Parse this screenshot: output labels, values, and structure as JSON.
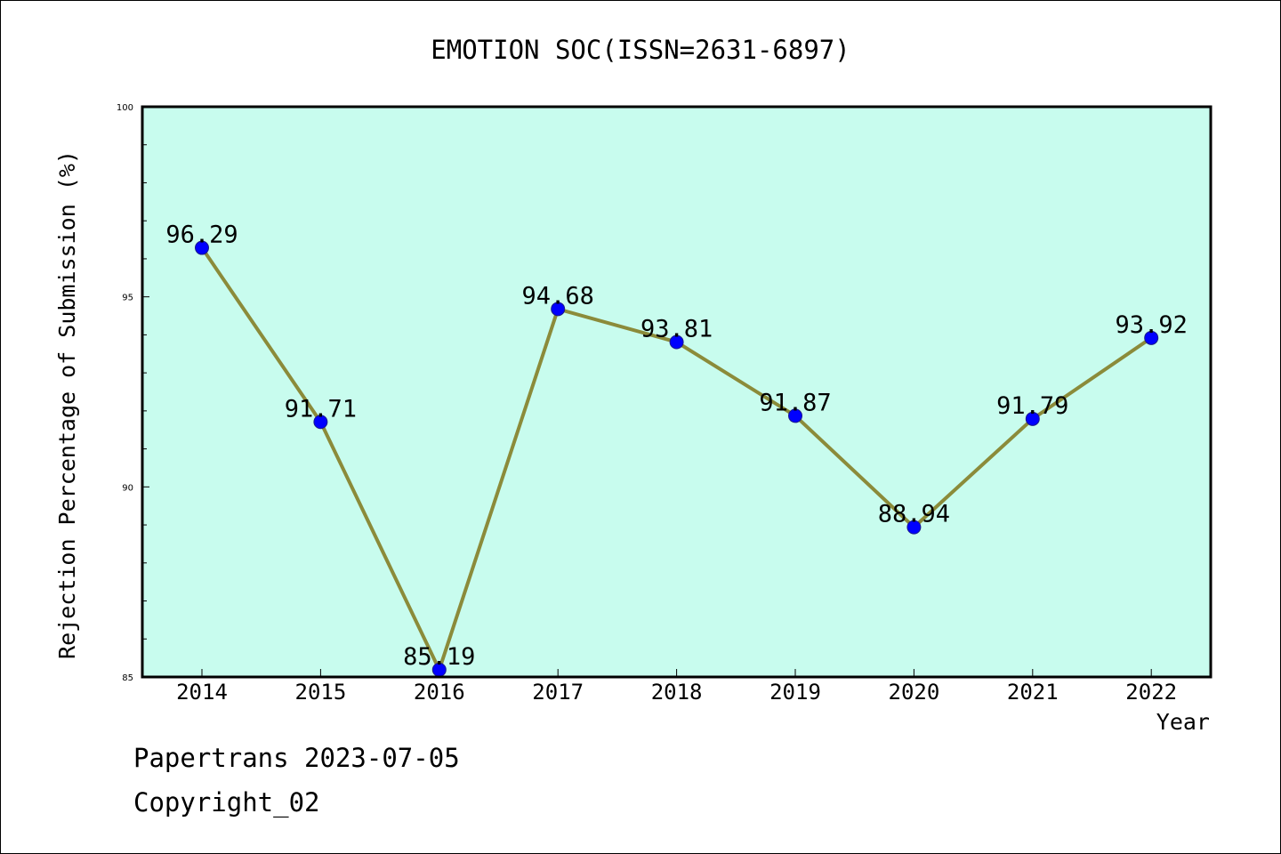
{
  "chart_data": {
    "type": "line",
    "title": "EMOTION SOC(ISSN=2631-6897)",
    "xlabel": "Year",
    "ylabel": "Rejection Percentage of Submission (%)",
    "categories": [
      "2014",
      "2015",
      "2016",
      "2017",
      "2018",
      "2019",
      "2020",
      "2021",
      "2022"
    ],
    "values": [
      96.29,
      91.71,
      85.19,
      94.68,
      93.81,
      91.87,
      88.94,
      91.79,
      93.92
    ],
    "data_labels": [
      "96.29",
      "91.71",
      "85.19",
      "94.68",
      "93.81",
      "91.87",
      "88.94",
      "91.79",
      "93.92"
    ],
    "ylim": [
      85,
      100
    ],
    "yticks": [
      85,
      90,
      95,
      100
    ],
    "ytick_labels": [
      "85",
      "90",
      "95",
      "100"
    ],
    "grid": false,
    "legend": "none",
    "colors": {
      "plot_background": "#c8fcee",
      "line": "#8b8b3a",
      "marker": "#0000ff",
      "marker_edge": "#1a1a8a"
    }
  },
  "footer": {
    "line1": "Papertrans 2023-07-05",
    "line2": "Copyright_02"
  }
}
